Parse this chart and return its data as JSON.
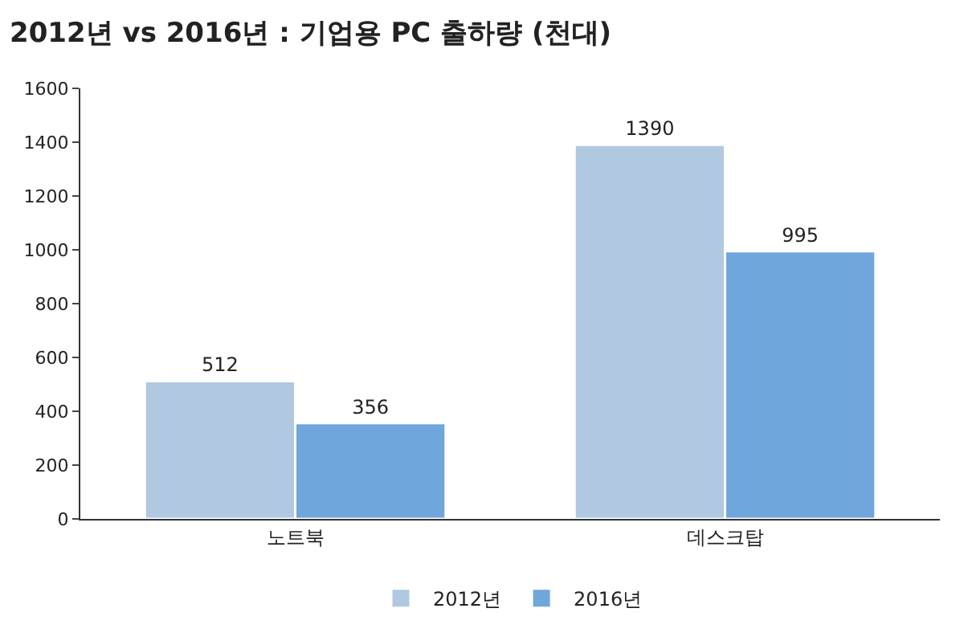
{
  "chart_data": {
    "type": "bar",
    "title": "2012년 vs 2016년 : 기업용 PC 출하량 (천대)",
    "categories": [
      "노트북",
      "데스크탑"
    ],
    "series": [
      {
        "name": "2012년",
        "color": "#b0c8e0",
        "values": [
          512,
          1390
        ]
      },
      {
        "name": "2016년",
        "color": "#6fa6dc",
        "values": [
          356,
          995
        ]
      }
    ],
    "ylim": [
      0,
      1600
    ],
    "yticks": [
      0,
      200,
      400,
      600,
      800,
      1000,
      1200,
      1400,
      1600
    ],
    "data_labels": true,
    "legend": "bottom"
  }
}
